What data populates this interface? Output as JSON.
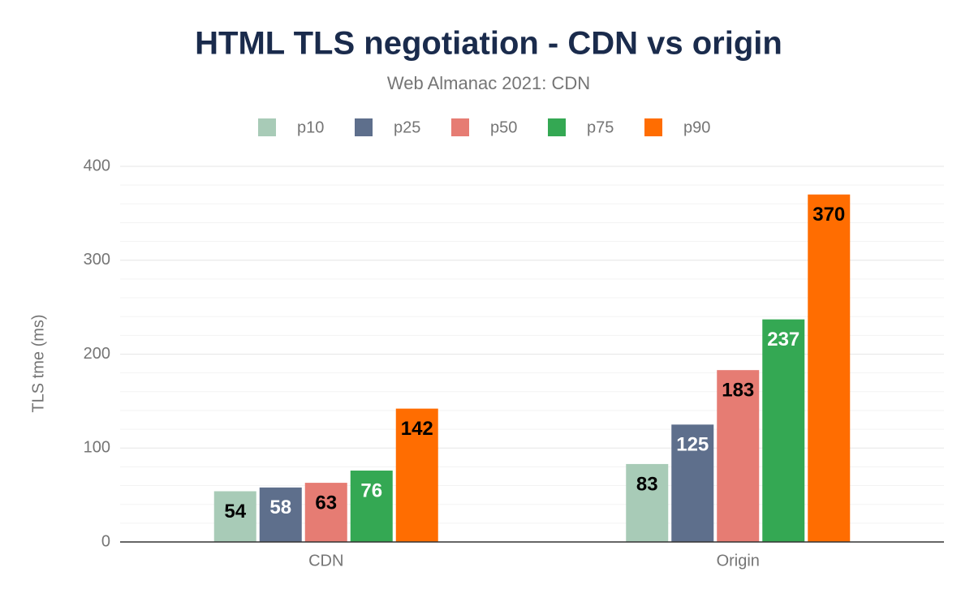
{
  "chart_data": {
    "type": "bar",
    "title": "HTML TLS negotiation - CDN vs origin",
    "subtitle": "Web Almanac 2021: CDN",
    "y_label": "TLS tme (ms)",
    "categories": [
      "CDN",
      "Origin"
    ],
    "series": [
      {
        "name": "p10",
        "color": "#a8cbb7",
        "label_color": "#000000",
        "values": [
          54,
          83
        ]
      },
      {
        "name": "p25",
        "color": "#5e6f8c",
        "label_color": "#ffffff",
        "values": [
          58,
          125
        ]
      },
      {
        "name": "p50",
        "color": "#e67c73",
        "label_color": "#000000",
        "values": [
          63,
          183
        ]
      },
      {
        "name": "p75",
        "color": "#34a853",
        "label_color": "#ffffff",
        "values": [
          76,
          237
        ]
      },
      {
        "name": "p90",
        "color": "#ff6d01",
        "label_color": "#000000",
        "values": [
          142,
          370
        ]
      }
    ],
    "ylim": [
      0,
      400
    ],
    "yticks": [
      0,
      100,
      200,
      300,
      400
    ],
    "grid": true,
    "minor_grid_divisions": 5,
    "legend": "top"
  }
}
